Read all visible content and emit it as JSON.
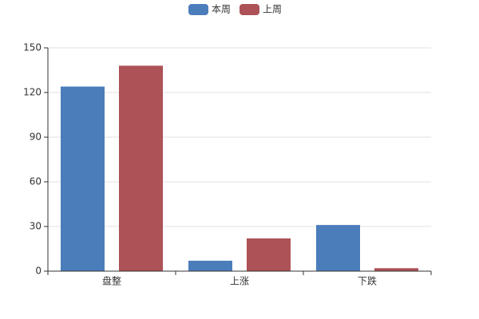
{
  "chart_data": {
    "type": "bar",
    "categories": [
      "盘整",
      "上涨",
      "下跌"
    ],
    "series": [
      {
        "name": "本周",
        "color": "#4b7dbb",
        "values": [
          124,
          7,
          31
        ]
      },
      {
        "name": "上周",
        "color": "#ad5257",
        "values": [
          138,
          22,
          2
        ]
      }
    ],
    "ylim": [
      0,
      150
    ],
    "yticks": [
      0,
      30,
      60,
      90,
      120,
      150
    ],
    "grid": true,
    "legend": "top"
  }
}
